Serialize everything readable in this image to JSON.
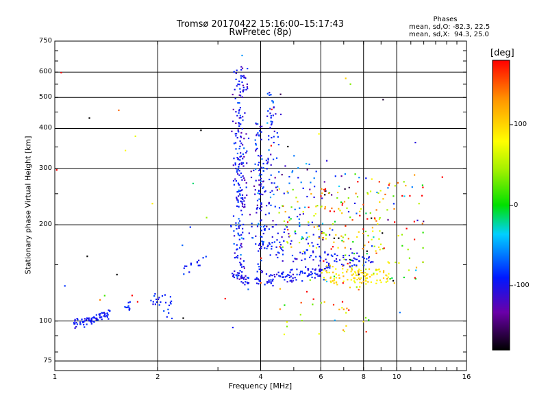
{
  "header": {
    "title_line1": "Tromsø 20170422 15:16:00–15:17:43",
    "title_line2": "RwPretec (8p)"
  },
  "phases": {
    "heading": "Phases",
    "line_o": "mean, sd,O: -82.3, 22.5",
    "line_x": "mean, sd,X:  94.3, 25.0"
  },
  "colorbar": {
    "unit_label": "[deg]",
    "range": [
      -180,
      180
    ],
    "ticks": [
      100,
      0,
      -100
    ],
    "tick_labels": [
      "100",
      "0",
      "-100"
    ]
  },
  "chart_data": {
    "type": "scatter",
    "xlabel": "Frequency [MHz]",
    "ylabel": "Stationary phase Virtual Height [km]",
    "xscale": "log",
    "yscale": "log",
    "xlim": [
      1,
      16
    ],
    "ylim": [
      70,
      750
    ],
    "x_ticks": [
      1,
      2,
      4,
      6,
      8,
      10,
      16
    ],
    "x_tick_labels": [
      "1",
      "2",
      "4",
      "6",
      "8",
      "10",
      "16"
    ],
    "y_ticks": [
      75,
      100,
      200,
      300,
      400,
      500,
      600,
      750
    ],
    "y_tick_labels": [
      "75",
      "100",
      "200",
      "300",
      "400",
      "500",
      "600",
      "750"
    ],
    "grid": true,
    "clusters": [
      {
        "type": "line",
        "x0": 1.13,
        "x1": 1.45,
        "y0": 98,
        "y1": 105,
        "spread": 0.015,
        "n": 70,
        "phase": -95,
        "psd": 8
      },
      {
        "type": "line",
        "x0": 1.6,
        "x1": 1.66,
        "y0": 108,
        "y1": 112,
        "spread": 0.02,
        "n": 10,
        "phase": -90,
        "psd": 10
      },
      {
        "type": "line",
        "x0": 1.9,
        "x1": 2.2,
        "y0": 120,
        "y1": 110,
        "spread": 0.03,
        "n": 25,
        "phase": -90,
        "psd": 10
      },
      {
        "type": "line",
        "x0": 2.35,
        "x1": 2.8,
        "y0": 145,
        "y1": 158,
        "spread": 0.03,
        "n": 14,
        "phase": -95,
        "psd": 8
      },
      {
        "type": "line",
        "x0": 3.3,
        "x1": 3.7,
        "y0": 140,
        "y1": 133,
        "spread": 0.025,
        "n": 40,
        "phase": -95,
        "psd": 12
      },
      {
        "type": "vert",
        "x": 3.45,
        "xs": 0.02,
        "y0": 140,
        "y1": 640,
        "n": 170,
        "phase": -95,
        "psd": 18
      },
      {
        "type": "vert",
        "x": 3.58,
        "xs": 0.015,
        "y0": 220,
        "y1": 620,
        "n": 50,
        "phase": -100,
        "psd": 15
      },
      {
        "type": "vert",
        "x": 3.95,
        "xs": 0.02,
        "y0": 140,
        "y1": 420,
        "n": 90,
        "phase": -95,
        "psd": 18
      },
      {
        "type": "vert",
        "x": 4.3,
        "xs": 0.025,
        "y0": 160,
        "y1": 520,
        "n": 70,
        "phase": -90,
        "psd": 20
      },
      {
        "type": "line",
        "x0": 3.85,
        "x1": 6.4,
        "y0": 133,
        "y1": 145,
        "spread": 0.025,
        "n": 110,
        "phase": -95,
        "psd": 10
      },
      {
        "type": "line",
        "x0": 6.0,
        "x1": 9.5,
        "y0": 140,
        "y1": 138,
        "spread": 0.04,
        "n": 100,
        "phase": 95,
        "psd": 15
      },
      {
        "type": "line",
        "x0": 4.0,
        "x1": 6.0,
        "y0": 175,
        "y1": 162,
        "spread": 0.05,
        "n": 60,
        "phase": -95,
        "psd": 12
      },
      {
        "type": "line",
        "x0": 6.0,
        "x1": 8.6,
        "y0": 158,
        "y1": 155,
        "spread": 0.03,
        "n": 45,
        "phase": -95,
        "psd": 12
      },
      {
        "type": "box",
        "x0": 3.7,
        "x1": 6.5,
        "y0": 180,
        "y1": 330,
        "n": 90,
        "phase": -90,
        "psd": 28
      },
      {
        "type": "box",
        "x0": 4.5,
        "x1": 9.0,
        "y0": 165,
        "y1": 260,
        "n": 110,
        "phase": 80,
        "psd": 45
      },
      {
        "type": "box",
        "x0": 6.0,
        "x1": 12.0,
        "y0": 130,
        "y1": 290,
        "n": 130,
        "phase": 40,
        "psd": 140
      },
      {
        "type": "box",
        "x0": 4.5,
        "x1": 8.5,
        "y0": 90,
        "y1": 135,
        "n": 35,
        "phase": 90,
        "psd": 70
      },
      {
        "type": "box",
        "x0": 1.0,
        "x1": 16.0,
        "y0": 75,
        "y1": 700,
        "n": 40,
        "phase": 0,
        "psd": 170
      }
    ]
  }
}
